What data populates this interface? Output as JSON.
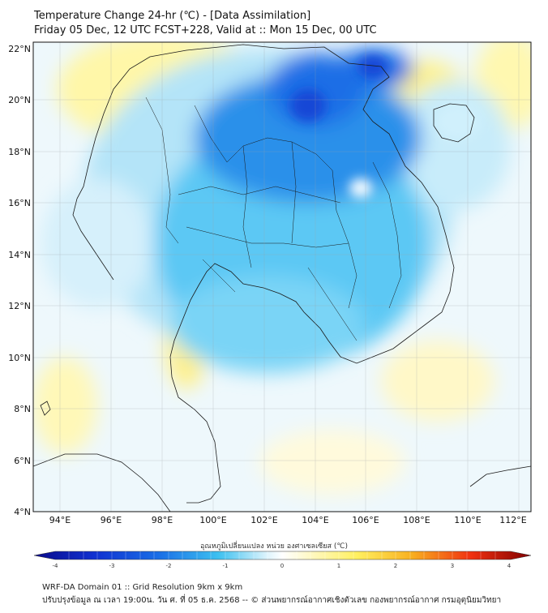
{
  "title_line1": "Temperature Change 24-hr (℃) - [Data Assimilation]",
  "title_line2": "Friday 05 Dec, 12 UTC FCST+228, Valid at :: Mon 15 Dec, 00 UTC",
  "lat_labels": [
    "22°N",
    "20°N",
    "18°N",
    "16°N",
    "14°N",
    "12°N",
    "10°N",
    "8°N",
    "6°N",
    "4°N"
  ],
  "lon_labels": [
    "94°E",
    "96°E",
    "98°E",
    "100°E",
    "102°E",
    "104°E",
    "106°E",
    "108°E",
    "110°E",
    "112°E"
  ],
  "colorbar": {
    "label": "อุณหภูมิเปลี่ยนแปลง หน่วย องศาเซลเซียส (℃)",
    "ticks": [
      "-4",
      "-3",
      "-2",
      "-1",
      "0",
      "1",
      "2",
      "3",
      "4"
    ],
    "min": -4,
    "max": 4
  },
  "footer_line1": "WRF-DA Domain 01 :: Grid Resolution 9km x 9km",
  "footer_line2": "ปรับปรุงข้อมูล ณ เวลา 19:00น. วัน ศ. ที่ 05 ธ.ค. 2568 -- © ส่วนพยากรณ์อากาศเชิงตัวเลข กองพยากรณ์อากาศ กรมอุตุนิยมวิทยา",
  "colors": {
    "warm": "#fff060",
    "pale": "#f4fbff",
    "light_blue": "#b4e4f8",
    "cyan": "#5cc8f4",
    "deep_blue": "#1a6ee6",
    "darkest": "#1446d6"
  }
}
